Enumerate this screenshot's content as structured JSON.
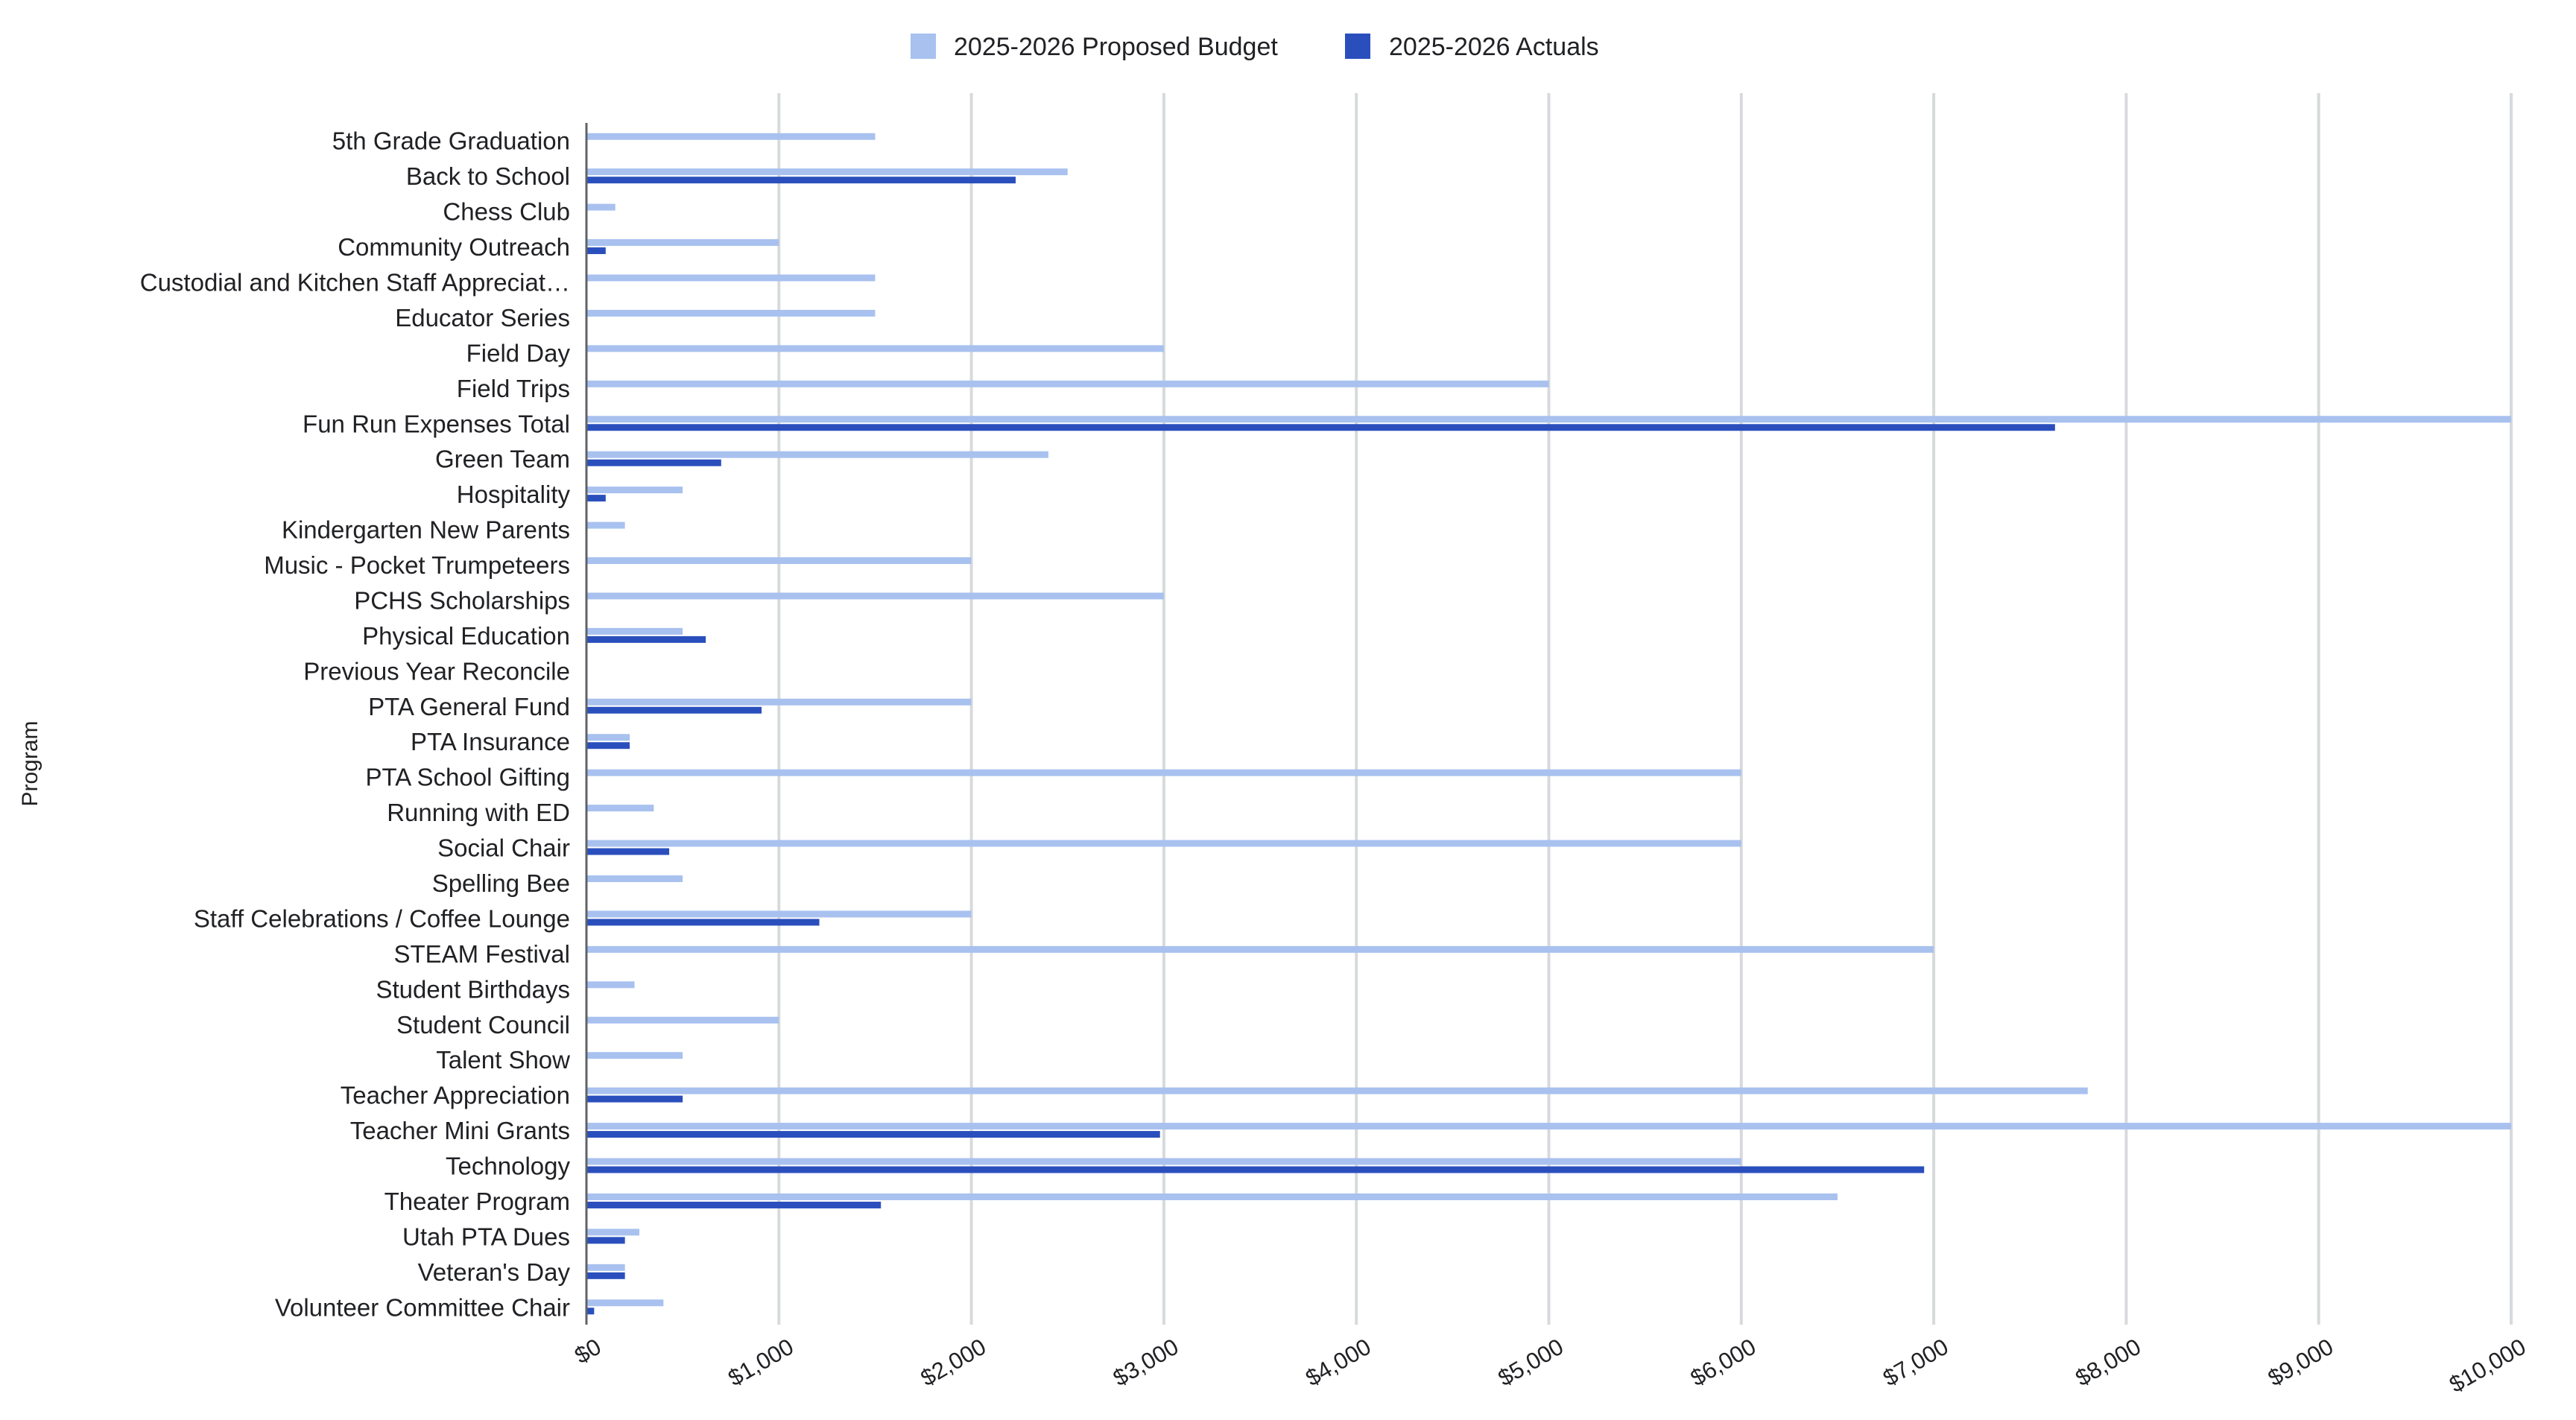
{
  "chart_data": {
    "type": "bar",
    "orientation": "horizontal",
    "ylabel": "Program",
    "xlabel": "",
    "xlim": [
      0,
      10000
    ],
    "x_ticks": [
      "$0",
      "$1,000",
      "$2,000",
      "$3,000",
      "$4,000",
      "$5,000",
      "$6,000",
      "$7,000",
      "$8,000",
      "$9,000",
      "$10,000"
    ],
    "grid": true,
    "legend_position": "top",
    "categories": [
      "5th Grade Graduation",
      "Back to School",
      "Chess Club",
      "Community Outreach",
      "Custodial and Kitchen Staff Appreciat…",
      "Educator Series",
      "Field Day",
      "Field Trips",
      "Fun Run Expenses Total",
      "Green Team",
      "Hospitality",
      "Kindergarten New Parents",
      "Music - Pocket Trumpeteers",
      "PCHS Scholarships",
      "Physical Education",
      "Previous Year Reconcile",
      "PTA General Fund",
      "PTA Insurance",
      "PTA School Gifting",
      "Running with ED",
      "Social Chair",
      "Spelling Bee",
      "Staff Celebrations / Coffee Lounge",
      "STEAM Festival",
      "Student Birthdays",
      "Student Council",
      "Talent Show",
      "Teacher Appreciation",
      "Teacher Mini Grants",
      "Technology",
      "Theater Program",
      "Utah PTA Dues",
      "Veteran's Day",
      "Volunteer Committee Chair"
    ],
    "series": [
      {
        "name": "2025-2026 Proposed Budget",
        "color": "#a8c1ef",
        "values": [
          1500,
          2500,
          150,
          1000,
          1500,
          1500,
          3000,
          5000,
          10000,
          2400,
          500,
          200,
          2000,
          3000,
          500,
          0,
          2000,
          225,
          6000,
          350,
          6000,
          500,
          2000,
          7000,
          250,
          1000,
          500,
          7800,
          10000,
          6000,
          6500,
          275,
          200,
          400
        ]
      },
      {
        "name": "2025-2026 Actuals",
        "color": "#2a4fbd",
        "values": [
          0,
          2230,
          0,
          100,
          0,
          0,
          0,
          0,
          7630,
          700,
          100,
          0,
          0,
          0,
          620,
          0,
          910,
          225,
          0,
          0,
          430,
          0,
          1210,
          0,
          0,
          0,
          0,
          500,
          2980,
          6950,
          1530,
          200,
          200,
          40
        ]
      }
    ]
  }
}
